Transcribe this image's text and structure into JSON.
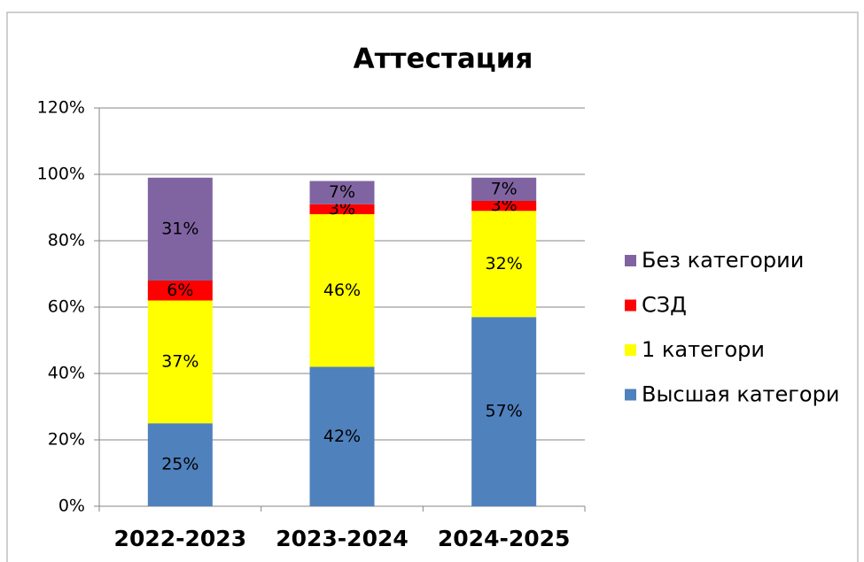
{
  "chart_data": {
    "type": "stacked_bar",
    "title": "Аттестация",
    "categories": [
      "2022-2023",
      "2023-2024",
      "2024-2025"
    ],
    "series": [
      {
        "name": "Высшая категори",
        "color": "#4f81bd",
        "values": [
          25,
          42,
          57
        ],
        "value_labels": [
          "25%",
          "42%",
          "57%"
        ]
      },
      {
        "name": "1 категори",
        "color": "#ffff00",
        "values": [
          37,
          46,
          32
        ],
        "value_labels": [
          "37%",
          "46%",
          "32%"
        ]
      },
      {
        "name": "СЗД",
        "color": "#ff0000",
        "values": [
          6,
          3,
          3
        ],
        "value_labels": [
          "6%",
          "3%",
          "3%"
        ]
      },
      {
        "name": "Без категории",
        "color": "#8064a2",
        "values": [
          31,
          7,
          7
        ],
        "value_labels": [
          "31%",
          "7%",
          "7%"
        ]
      }
    ],
    "ylim": [
      0,
      120
    ],
    "yticks": [
      {
        "value": 0,
        "label": "0%"
      },
      {
        "value": 20,
        "label": "20%"
      },
      {
        "value": 40,
        "label": "40%"
      },
      {
        "value": 60,
        "label": "60%"
      },
      {
        "value": 80,
        "label": "80%"
      },
      {
        "value": 100,
        "label": "100%"
      },
      {
        "value": 120,
        "label": "120%"
      }
    ],
    "grid": true,
    "legend": "right"
  }
}
